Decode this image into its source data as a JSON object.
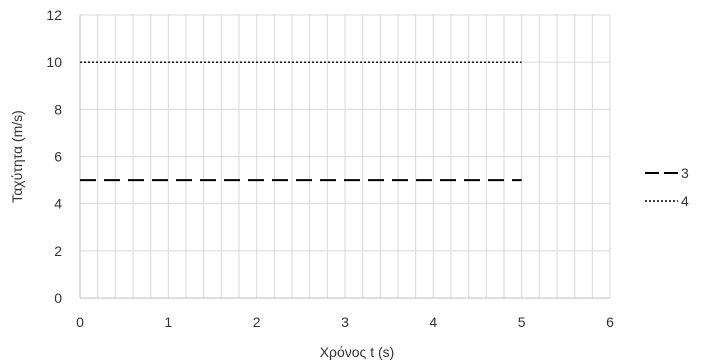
{
  "chart_data": {
    "type": "line",
    "title": "",
    "xlabel": "Χρόνος t (s)",
    "ylabel": "Ταχύτητα (m/s)",
    "xlim": [
      0,
      6
    ],
    "ylim": [
      0,
      12
    ],
    "x_ticks": [
      0,
      1,
      2,
      3,
      4,
      5,
      6
    ],
    "y_ticks": [
      0,
      2,
      4,
      6,
      8,
      10,
      12
    ],
    "x_minor_step": 0.2,
    "grid": true,
    "legend_position": "right",
    "series": [
      {
        "name": "3",
        "x": [
          0,
          5
        ],
        "y": [
          5,
          5
        ],
        "style": "dashed",
        "color": "#000000"
      },
      {
        "name": "4",
        "x": [
          0,
          5
        ],
        "y": [
          10,
          10
        ],
        "style": "dotted",
        "color": "#000000"
      }
    ]
  },
  "colors": {
    "grid": "#d9d9d9",
    "axis": "#bfbfbf",
    "text": "#333333"
  }
}
